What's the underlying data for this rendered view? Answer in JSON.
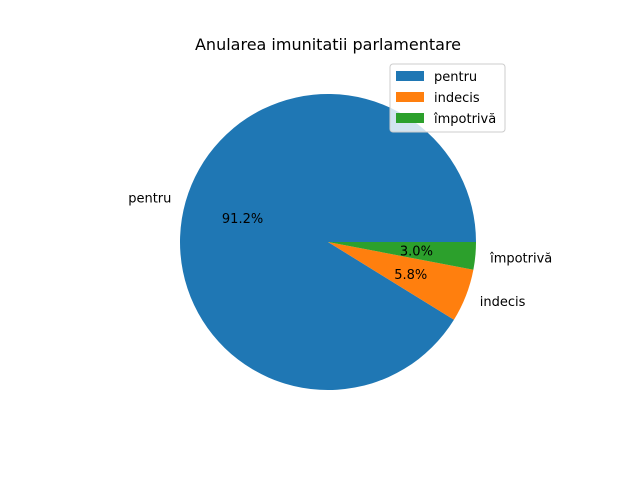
{
  "chart_data": {
    "type": "pie",
    "title": "Anularea imunitatii parlamentare",
    "categories": [
      "pentru",
      "indecis",
      "împotrivă"
    ],
    "values": [
      91.2,
      5.8,
      3.0
    ],
    "percent_labels": [
      "91.2%",
      "5.8%",
      "3.0%"
    ],
    "colors": [
      "#1f77b4",
      "#ff7f0e",
      "#2ca02c"
    ],
    "start_angle": 0,
    "direction": "counterclockwise",
    "legend": {
      "placement": "top-right",
      "entries": [
        "pentru",
        "indecis",
        "împotrivă"
      ]
    }
  }
}
